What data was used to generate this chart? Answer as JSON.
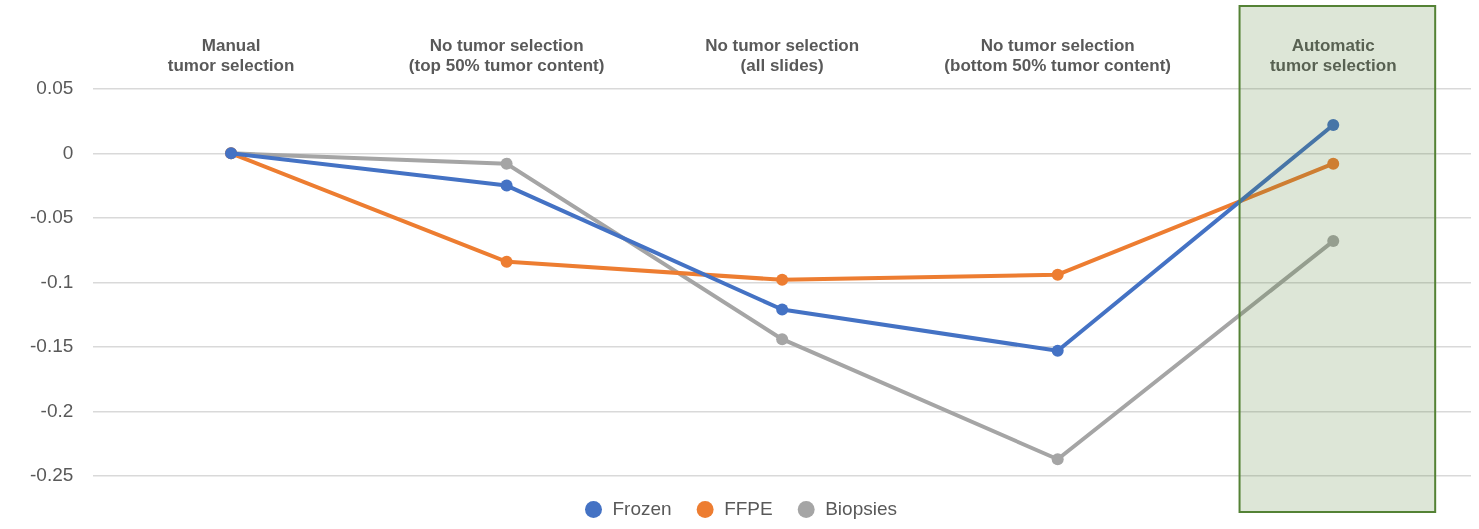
{
  "chart_data": {
    "type": "line",
    "categories": [
      "Manual\ntumor selection",
      "No tumor selection\n(top 50% tumor content)",
      "No tumor selection\n(all slides)",
      "No tumor selection\n(bottom 50% tumor content)",
      "Automatic\ntumor selection"
    ],
    "series": [
      {
        "name": "Frozen",
        "color": "#4472c4",
        "values": [
          0,
          -0.025,
          -0.121,
          -0.153,
          0.022
        ]
      },
      {
        "name": "FFPE",
        "color": "#ed7d31",
        "values": [
          0,
          -0.084,
          -0.098,
          -0.094,
          -0.008
        ]
      },
      {
        "name": "Biopsies",
        "color": "#a5a5a5",
        "values": [
          0,
          -0.008,
          -0.144,
          -0.237,
          -0.068
        ]
      }
    ],
    "ylim": [
      -0.25,
      0.05
    ],
    "yticks": [
      0.05,
      0,
      -0.05,
      -0.1,
      -0.15,
      -0.2,
      -0.25
    ],
    "bands": [
      {
        "axis": "x",
        "from": "Automatic\ntumor selection",
        "to": "Automatic\ntumor selection",
        "color": "#548235"
      }
    ],
    "grid": "y",
    "legend": "bottom",
    "marker": "circle",
    "line_style": "solid"
  }
}
